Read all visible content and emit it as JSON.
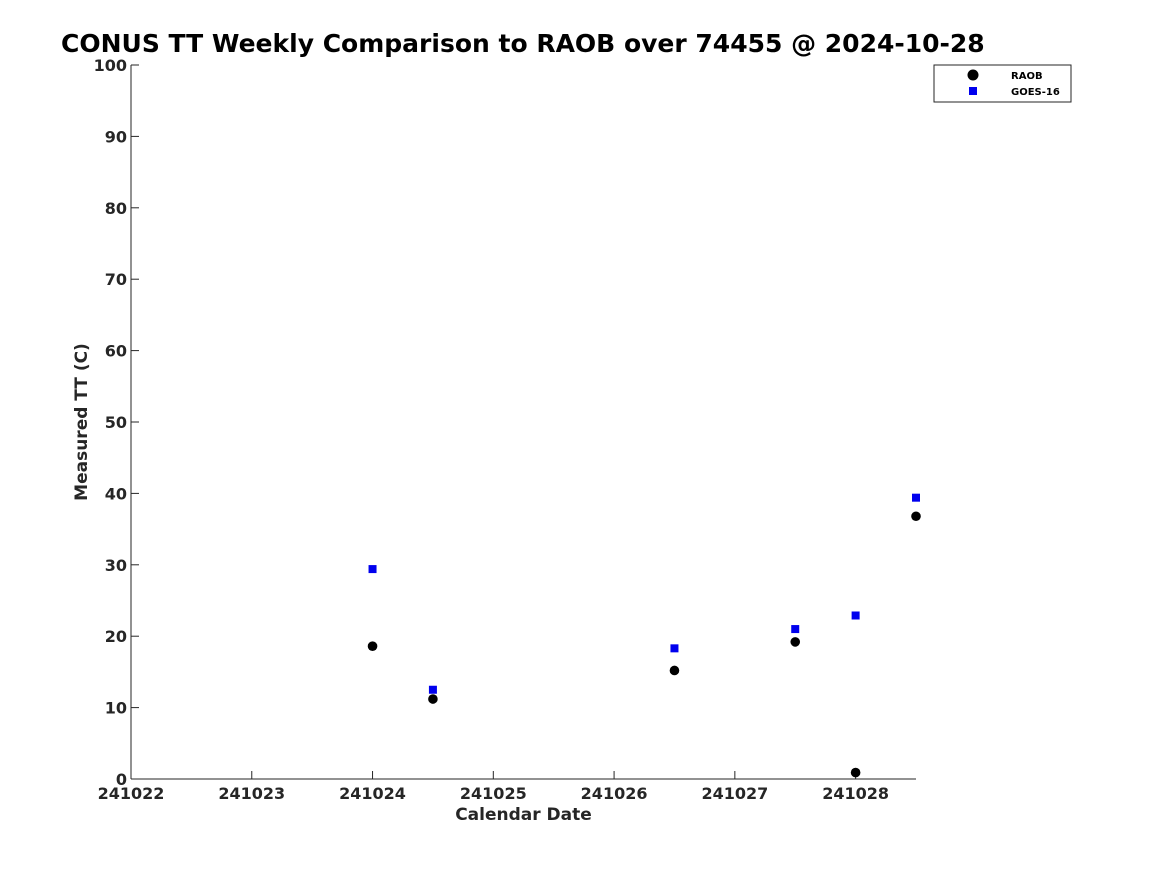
{
  "chart_data": {
    "type": "scatter",
    "title": "CONUS TT Weekly Comparison to RAOB over 74455 @ 2024-10-28",
    "xlabel": "Calendar Date",
    "ylabel": "Measured TT (C)",
    "xlim": [
      241022,
      241028.5
    ],
    "ylim": [
      0,
      100
    ],
    "xticks": [
      241022,
      241023,
      241024,
      241025,
      241026,
      241027,
      241028
    ],
    "xtick_labels": [
      "241022",
      "241023",
      "241024",
      "241025",
      "241026",
      "241027",
      "241028"
    ],
    "yticks": [
      0,
      10,
      20,
      30,
      40,
      50,
      60,
      70,
      80,
      90,
      100
    ],
    "ytick_labels": [
      "0",
      "10",
      "20",
      "30",
      "40",
      "50",
      "60",
      "70",
      "80",
      "90",
      "100"
    ],
    "grid": false,
    "legend_position": "top-right",
    "series": [
      {
        "name": "RAOB",
        "marker": "circle",
        "color": "#000000",
        "points": [
          {
            "x": 241024.0,
            "y": 18.6
          },
          {
            "x": 241024.5,
            "y": 11.2
          },
          {
            "x": 241026.5,
            "y": 15.2
          },
          {
            "x": 241027.5,
            "y": 19.2
          },
          {
            "x": 241028.0,
            "y": 0.9
          },
          {
            "x": 241028.5,
            "y": 36.8
          }
        ]
      },
      {
        "name": "GOES-16",
        "marker": "square",
        "color": "#0000ee",
        "points": [
          {
            "x": 241024.0,
            "y": 29.4
          },
          {
            "x": 241024.5,
            "y": 12.5
          },
          {
            "x": 241026.5,
            "y": 18.3
          },
          {
            "x": 241027.5,
            "y": 21.0
          },
          {
            "x": 241028.0,
            "y": 22.9
          },
          {
            "x": 241028.5,
            "y": 39.4
          }
        ]
      }
    ]
  }
}
